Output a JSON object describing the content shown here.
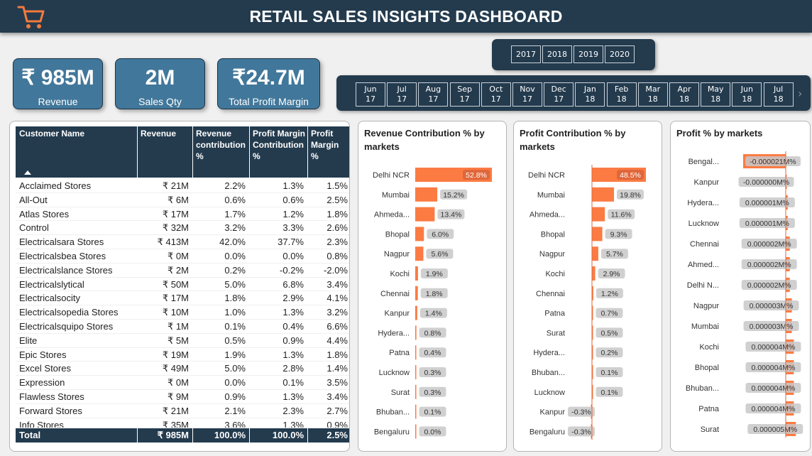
{
  "header": {
    "title": "RETAIL SALES INSIGHTS DASHBOARD",
    "logo_icon": "shopping-cart-icon"
  },
  "kpis": [
    {
      "value": "₹ 985M",
      "label": "Revenue"
    },
    {
      "value": "2M",
      "label": "Sales Qty"
    },
    {
      "value": "₹24.7M",
      "label": "Total Profit Margin"
    }
  ],
  "year_slicer": {
    "years": [
      "2017",
      "2018",
      "2019",
      "2020"
    ]
  },
  "month_slicer": {
    "months": [
      {
        "m": "Jun",
        "y": "17"
      },
      {
        "m": "Jul",
        "y": "17"
      },
      {
        "m": "Aug",
        "y": "17"
      },
      {
        "m": "Sep",
        "y": "17"
      },
      {
        "m": "Oct",
        "y": "17"
      },
      {
        "m": "Nov",
        "y": "17"
      },
      {
        "m": "Dec",
        "y": "17"
      },
      {
        "m": "Jan",
        "y": "18"
      },
      {
        "m": "Feb",
        "y": "18"
      },
      {
        "m": "Mar",
        "y": "18"
      },
      {
        "m": "Apr",
        "y": "18"
      },
      {
        "m": "May",
        "y": "18"
      },
      {
        "m": "Jun",
        "y": "18"
      },
      {
        "m": "Jul",
        "y": "18"
      }
    ],
    "next_icon": "chevron-right-icon"
  },
  "table": {
    "headers": [
      "Customer Name",
      "Revenue",
      "Revenue contribution %",
      "Profit Margin Contribution %",
      "Profit Margin %"
    ],
    "rows": [
      [
        "Acclaimed Stores",
        "₹ 21M",
        "2.2%",
        "1.3%",
        "1.5%"
      ],
      [
        "All-Out",
        "₹ 6M",
        "0.6%",
        "0.6%",
        "2.5%"
      ],
      [
        "Atlas Stores",
        "₹ 17M",
        "1.7%",
        "1.2%",
        "1.8%"
      ],
      [
        "Control",
        "₹ 32M",
        "3.2%",
        "3.3%",
        "2.6%"
      ],
      [
        "Electricalsara Stores",
        "₹ 413M",
        "42.0%",
        "37.7%",
        "2.3%"
      ],
      [
        "Electricalsbea Stores",
        "₹ 0M",
        "0.0%",
        "0.0%",
        "0.8%"
      ],
      [
        "Electricalslance Stores",
        "₹ 2M",
        "0.2%",
        "-0.2%",
        "-2.0%"
      ],
      [
        "Electricalslytical",
        "₹ 50M",
        "5.0%",
        "6.8%",
        "3.4%"
      ],
      [
        "Electricalsocity",
        "₹ 17M",
        "1.8%",
        "2.9%",
        "4.1%"
      ],
      [
        "Electricalsopedia Stores",
        "₹ 10M",
        "1.0%",
        "1.3%",
        "3.2%"
      ],
      [
        "Electricalsquipo Stores",
        "₹ 1M",
        "0.1%",
        "0.4%",
        "6.6%"
      ],
      [
        "Elite",
        "₹ 5M",
        "0.5%",
        "0.9%",
        "4.4%"
      ],
      [
        "Epic Stores",
        "₹ 19M",
        "1.9%",
        "1.3%",
        "1.8%"
      ],
      [
        "Excel Stores",
        "₹ 49M",
        "5.0%",
        "2.8%",
        "1.4%"
      ],
      [
        "Expression",
        "₹ 0M",
        "0.0%",
        "0.1%",
        "3.5%"
      ],
      [
        "Flawless Stores",
        "₹ 9M",
        "0.9%",
        "1.3%",
        "3.4%"
      ],
      [
        "Forward Stores",
        "₹ 21M",
        "2.1%",
        "2.3%",
        "2.7%"
      ],
      [
        "Info Stores",
        "₹ 35M",
        "3.6%",
        "1.3%",
        "0.9%"
      ]
    ],
    "total": [
      "Total",
      "₹ 985M",
      "100.0%",
      "100.0%",
      "2.5%"
    ]
  },
  "chart_data": [
    {
      "type": "bar",
      "title": "Revenue Contribution % by markets",
      "categories": [
        "Delhi NCR",
        "Mumbai",
        "Ahmeda...",
        "Bhopal",
        "Nagpur",
        "Kochi",
        "Chennai",
        "Kanpur",
        "Hydera...",
        "Patna",
        "Lucknow",
        "Surat",
        "Bhuban...",
        "Bengaluru"
      ],
      "values": [
        52.8,
        15.2,
        13.4,
        6.0,
        5.6,
        1.9,
        1.8,
        1.4,
        0.8,
        0.4,
        0.3,
        0.3,
        0.1,
        0.0
      ],
      "labels": [
        "52.8%",
        "15.2%",
        "13.4%",
        "6.0%",
        "5.6%",
        "1.9%",
        "1.8%",
        "1.4%",
        "0.8%",
        "0.4%",
        "0.3%",
        "0.3%",
        "0.1%",
        "0.0%"
      ],
      "color": "#fb7b43"
    },
    {
      "type": "bar",
      "title": "Profit Contribution % by markets",
      "categories": [
        "Delhi NCR",
        "Mumbai",
        "Ahmeda...",
        "Bhopal",
        "Nagpur",
        "Kochi",
        "Chennai",
        "Patna",
        "Surat",
        "Hydera...",
        "Bhuban...",
        "Lucknow",
        "Kanpur",
        "Bengaluru"
      ],
      "values": [
        48.5,
        19.8,
        11.6,
        9.3,
        5.7,
        2.9,
        1.2,
        0.7,
        0.5,
        0.2,
        0.1,
        0.1,
        -0.3,
        -0.3
      ],
      "labels": [
        "48.5%",
        "19.8%",
        "11.6%",
        "9.3%",
        "5.7%",
        "2.9%",
        "1.2%",
        "0.7%",
        "0.5%",
        "0.2%",
        "0.1%",
        "0.1%",
        "-0.3%",
        "-0.3%"
      ],
      "color": "#fb7b43"
    },
    {
      "type": "bar",
      "title": "Profit % by markets",
      "categories": [
        "Bengal...",
        "Kanpur",
        "Hydera...",
        "Lucknow",
        "Chennai",
        "Ahmed...",
        "Delhi N...",
        "Nagpur",
        "Mumbai",
        "Kochi",
        "Bhopal",
        "Bhuban...",
        "Patna",
        "Surat"
      ],
      "values": [
        -2.1e-05,
        -0.0,
        1e-06,
        1e-06,
        2e-06,
        2e-06,
        2e-06,
        3e-06,
        3e-06,
        4e-06,
        4e-06,
        4e-06,
        4e-06,
        5e-06
      ],
      "labels": [
        "-0.000021M%",
        "-0.000000M%",
        "0.000001M%",
        "0.000001M%",
        "0.000002M%",
        "0.000002M%",
        "0.000002M%",
        "0.000003M%",
        "0.000003M%",
        "0.000004M%",
        "0.000004M%",
        "0.000004M%",
        "0.000004M%",
        "0.000005M%"
      ],
      "color": "#fb7b43"
    }
  ]
}
